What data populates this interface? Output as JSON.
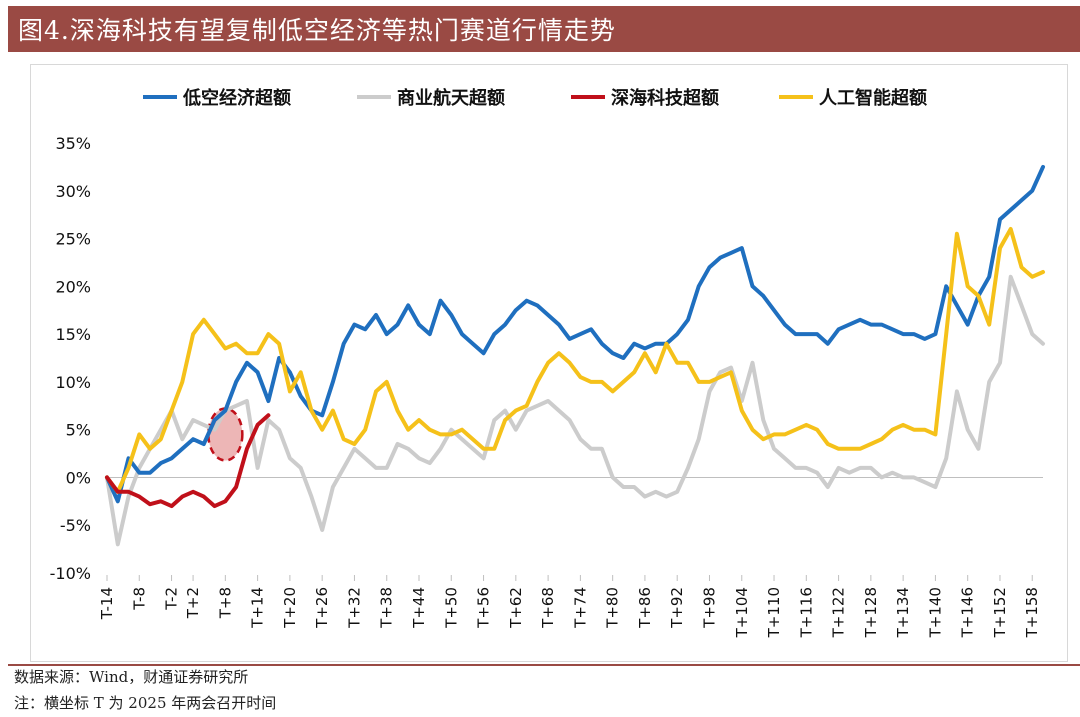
{
  "title": "图4.深海科技有望复制低空经济等热门赛道行情走势",
  "source": "数据来源：Wind，财通证券研究所",
  "note": "注：横坐标 T 为 2025 年两会召开时间",
  "chart_data": {
    "type": "line",
    "xlabel": "",
    "ylabel": "",
    "ylim": [
      -10,
      35
    ],
    "yticks": [
      "-10%",
      "-5%",
      "0%",
      "5%",
      "10%",
      "15%",
      "20%",
      "25%",
      "30%",
      "35%"
    ],
    "ytick_values": [
      -10,
      -5,
      0,
      5,
      10,
      15,
      20,
      25,
      30,
      35
    ],
    "x_start": -14,
    "x_end": 160,
    "xtick_labels": [
      "T-14",
      "T-8",
      "T-2",
      "T+2",
      "T+8",
      "T+14",
      "T+20",
      "T+26",
      "T+32",
      "T+38",
      "T+44",
      "T+50",
      "T+56",
      "T+62",
      "T+68",
      "T+74",
      "T+80",
      "T+86",
      "T+92",
      "T+98",
      "T+104",
      "T+110",
      "T+116",
      "T+122",
      "T+128",
      "T+134",
      "T+140",
      "T+146",
      "T+152",
      "T+158"
    ],
    "xtick_values": [
      -14,
      -8,
      -2,
      2,
      8,
      14,
      20,
      26,
      32,
      38,
      44,
      50,
      56,
      62,
      68,
      74,
      80,
      86,
      92,
      98,
      104,
      110,
      116,
      122,
      128,
      134,
      140,
      146,
      152,
      158
    ],
    "legend_position": "top",
    "grid": false,
    "highlight": {
      "x": 8,
      "y": 4.5,
      "label": ""
    },
    "series": [
      {
        "name": "低空经济超额",
        "color": "#1f6fbf",
        "points": [
          [
            -14,
            0
          ],
          [
            -12,
            -2.5
          ],
          [
            -10,
            2
          ],
          [
            -8,
            0.5
          ],
          [
            -6,
            0.5
          ],
          [
            -4,
            1.5
          ],
          [
            -2,
            2
          ],
          [
            0,
            3
          ],
          [
            2,
            4
          ],
          [
            4,
            3.5
          ],
          [
            6,
            6
          ],
          [
            8,
            7
          ],
          [
            10,
            10
          ],
          [
            12,
            12
          ],
          [
            14,
            11
          ],
          [
            16,
            8
          ],
          [
            18,
            12.5
          ],
          [
            20,
            11
          ],
          [
            22,
            8.5
          ],
          [
            24,
            7
          ],
          [
            26,
            6.5
          ],
          [
            28,
            10
          ],
          [
            30,
            14
          ],
          [
            32,
            16
          ],
          [
            34,
            15.5
          ],
          [
            36,
            17
          ],
          [
            38,
            15
          ],
          [
            40,
            16
          ],
          [
            42,
            18
          ],
          [
            44,
            16
          ],
          [
            46,
            15
          ],
          [
            48,
            18.5
          ],
          [
            50,
            17
          ],
          [
            52,
            15
          ],
          [
            54,
            14
          ],
          [
            56,
            13
          ],
          [
            58,
            15
          ],
          [
            60,
            16
          ],
          [
            62,
            17.5
          ],
          [
            64,
            18.5
          ],
          [
            66,
            18
          ],
          [
            68,
            17
          ],
          [
            70,
            16
          ],
          [
            72,
            14.5
          ],
          [
            74,
            15
          ],
          [
            76,
            15.5
          ],
          [
            78,
            14
          ],
          [
            80,
            13
          ],
          [
            82,
            12.5
          ],
          [
            84,
            14
          ],
          [
            86,
            13.5
          ],
          [
            88,
            14
          ],
          [
            90,
            14
          ],
          [
            92,
            15
          ],
          [
            94,
            16.5
          ],
          [
            96,
            20
          ],
          [
            98,
            22
          ],
          [
            100,
            23
          ],
          [
            102,
            23.5
          ],
          [
            104,
            24
          ],
          [
            106,
            20
          ],
          [
            108,
            19
          ],
          [
            110,
            17.5
          ],
          [
            112,
            16
          ],
          [
            114,
            15
          ],
          [
            116,
            15
          ],
          [
            118,
            15
          ],
          [
            120,
            14
          ],
          [
            122,
            15.5
          ],
          [
            124,
            16
          ],
          [
            126,
            16.5
          ],
          [
            128,
            16
          ],
          [
            130,
            16
          ],
          [
            132,
            15.5
          ],
          [
            134,
            15
          ],
          [
            136,
            15
          ],
          [
            138,
            14.5
          ],
          [
            140,
            15
          ],
          [
            142,
            20
          ],
          [
            144,
            18
          ],
          [
            146,
            16
          ],
          [
            148,
            19
          ],
          [
            150,
            21
          ],
          [
            152,
            27
          ],
          [
            154,
            28
          ],
          [
            156,
            29
          ],
          [
            158,
            30
          ],
          [
            160,
            32.5
          ]
        ]
      },
      {
        "name": "商业航天超额",
        "color": "#cccccc",
        "points": [
          [
            -14,
            0
          ],
          [
            -12,
            -7
          ],
          [
            -10,
            -2
          ],
          [
            -8,
            1
          ],
          [
            -6,
            3
          ],
          [
            -4,
            5
          ],
          [
            -2,
            7
          ],
          [
            0,
            4
          ],
          [
            2,
            6
          ],
          [
            4,
            5.5
          ],
          [
            6,
            5
          ],
          [
            8,
            7
          ],
          [
            10,
            7.5
          ],
          [
            12,
            8
          ],
          [
            14,
            1
          ],
          [
            16,
            6
          ],
          [
            18,
            5
          ],
          [
            20,
            2
          ],
          [
            22,
            1
          ],
          [
            24,
            -2
          ],
          [
            26,
            -5.5
          ],
          [
            28,
            -1
          ],
          [
            30,
            1
          ],
          [
            32,
            3
          ],
          [
            34,
            2
          ],
          [
            36,
            1
          ],
          [
            38,
            1
          ],
          [
            40,
            3.5
          ],
          [
            42,
            3
          ],
          [
            44,
            2
          ],
          [
            46,
            1.5
          ],
          [
            48,
            3
          ],
          [
            50,
            5
          ],
          [
            52,
            4
          ],
          [
            54,
            3
          ],
          [
            56,
            2
          ],
          [
            58,
            6
          ],
          [
            60,
            7
          ],
          [
            62,
            5
          ],
          [
            64,
            7
          ],
          [
            66,
            7.5
          ],
          [
            68,
            8
          ],
          [
            70,
            7
          ],
          [
            72,
            6
          ],
          [
            74,
            4
          ],
          [
            76,
            3
          ],
          [
            78,
            3
          ],
          [
            80,
            0
          ],
          [
            82,
            -1
          ],
          [
            84,
            -1
          ],
          [
            86,
            -2
          ],
          [
            88,
            -1.5
          ],
          [
            90,
            -2
          ],
          [
            92,
            -1.5
          ],
          [
            94,
            1
          ],
          [
            96,
            4
          ],
          [
            98,
            9
          ],
          [
            100,
            11
          ],
          [
            102,
            11.5
          ],
          [
            104,
            8
          ],
          [
            106,
            12
          ],
          [
            108,
            6
          ],
          [
            110,
            3
          ],
          [
            112,
            2
          ],
          [
            114,
            1
          ],
          [
            116,
            1
          ],
          [
            118,
            0.5
          ],
          [
            120,
            -1
          ],
          [
            122,
            1
          ],
          [
            124,
            0.5
          ],
          [
            126,
            1
          ],
          [
            128,
            1
          ],
          [
            130,
            0
          ],
          [
            132,
            0.5
          ],
          [
            134,
            0
          ],
          [
            136,
            0
          ],
          [
            138,
            -0.5
          ],
          [
            140,
            -1
          ],
          [
            142,
            2
          ],
          [
            144,
            9
          ],
          [
            146,
            5
          ],
          [
            148,
            3
          ],
          [
            150,
            10
          ],
          [
            152,
            12
          ],
          [
            154,
            21
          ],
          [
            156,
            18
          ],
          [
            158,
            15
          ],
          [
            160,
            14
          ]
        ]
      },
      {
        "name": "深海科技超额",
        "color": "#c0101a",
        "points": [
          [
            -14,
            0
          ],
          [
            -12,
            -1.5
          ],
          [
            -10,
            -1.5
          ],
          [
            -8,
            -2
          ],
          [
            -6,
            -2.8
          ],
          [
            -4,
            -2.5
          ],
          [
            -2,
            -3
          ],
          [
            0,
            -2
          ],
          [
            2,
            -1.5
          ],
          [
            4,
            -2
          ],
          [
            6,
            -3
          ],
          [
            8,
            -2.5
          ],
          [
            10,
            -1
          ],
          [
            12,
            3
          ],
          [
            14,
            5.5
          ],
          [
            16,
            6.5
          ]
        ]
      },
      {
        "name": "人工智能超额",
        "color": "#f5c11a",
        "points": [
          [
            -14,
            0
          ],
          [
            -12,
            -1.5
          ],
          [
            -10,
            1
          ],
          [
            -8,
            4.5
          ],
          [
            -6,
            3
          ],
          [
            -4,
            4
          ],
          [
            -2,
            7
          ],
          [
            0,
            10
          ],
          [
            2,
            15
          ],
          [
            4,
            16.5
          ],
          [
            6,
            15
          ],
          [
            8,
            13.5
          ],
          [
            10,
            14
          ],
          [
            12,
            13
          ],
          [
            14,
            13
          ],
          [
            16,
            15
          ],
          [
            18,
            14
          ],
          [
            20,
            9
          ],
          [
            22,
            11
          ],
          [
            24,
            7
          ],
          [
            26,
            5
          ],
          [
            28,
            7
          ],
          [
            30,
            4
          ],
          [
            32,
            3.5
          ],
          [
            34,
            5
          ],
          [
            36,
            9
          ],
          [
            38,
            10
          ],
          [
            40,
            7
          ],
          [
            42,
            5
          ],
          [
            44,
            6
          ],
          [
            46,
            5
          ],
          [
            48,
            4.5
          ],
          [
            50,
            4.5
          ],
          [
            52,
            5
          ],
          [
            54,
            4
          ],
          [
            56,
            3
          ],
          [
            58,
            3
          ],
          [
            60,
            6
          ],
          [
            62,
            7
          ],
          [
            64,
            7.5
          ],
          [
            66,
            10
          ],
          [
            68,
            12
          ],
          [
            70,
            13
          ],
          [
            72,
            12
          ],
          [
            74,
            10.5
          ],
          [
            76,
            10
          ],
          [
            78,
            10
          ],
          [
            80,
            9
          ],
          [
            82,
            10
          ],
          [
            84,
            11
          ],
          [
            86,
            13
          ],
          [
            88,
            11
          ],
          [
            90,
            14
          ],
          [
            92,
            12
          ],
          [
            94,
            12
          ],
          [
            96,
            10
          ],
          [
            98,
            10
          ],
          [
            100,
            10.5
          ],
          [
            102,
            11
          ],
          [
            104,
            7
          ],
          [
            106,
            5
          ],
          [
            108,
            4
          ],
          [
            110,
            4.5
          ],
          [
            112,
            4.5
          ],
          [
            114,
            5
          ],
          [
            116,
            5.5
          ],
          [
            118,
            5
          ],
          [
            120,
            3.5
          ],
          [
            122,
            3
          ],
          [
            124,
            3
          ],
          [
            126,
            3
          ],
          [
            128,
            3.5
          ],
          [
            130,
            4
          ],
          [
            132,
            5
          ],
          [
            134,
            5.5
          ],
          [
            136,
            5
          ],
          [
            138,
            5
          ],
          [
            140,
            4.5
          ],
          [
            142,
            15
          ],
          [
            144,
            25.5
          ],
          [
            146,
            20
          ],
          [
            148,
            19
          ],
          [
            150,
            16
          ],
          [
            152,
            24
          ],
          [
            154,
            26
          ],
          [
            156,
            22
          ],
          [
            158,
            21
          ],
          [
            160,
            21.5
          ]
        ]
      }
    ]
  }
}
